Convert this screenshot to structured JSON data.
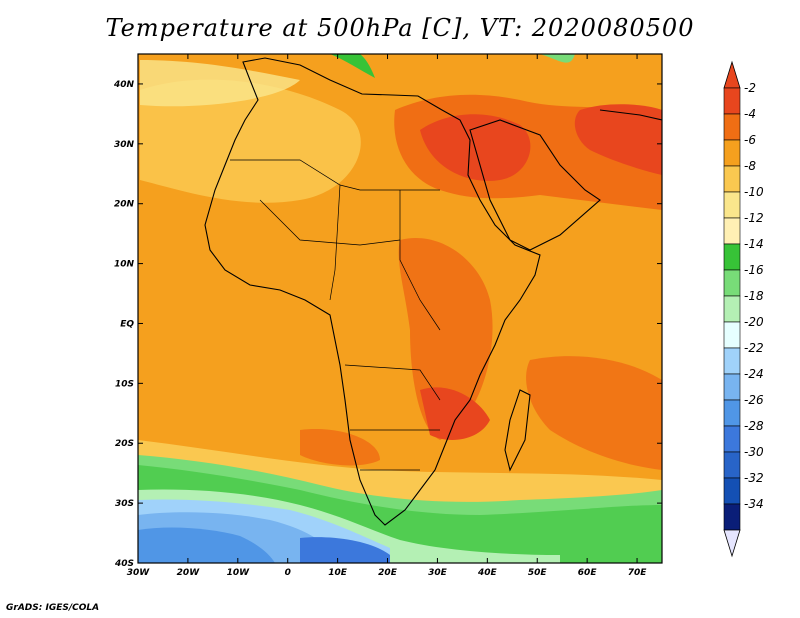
{
  "title": "Temperature at 500hPa [C], VT: 2020080500",
  "footer": "GrADS: IGES/COLA",
  "map": {
    "lon_range": [
      -30,
      75
    ],
    "lat_range": [
      -40,
      45
    ],
    "x_ticks": [
      {
        "lon": -30,
        "label": "30W"
      },
      {
        "lon": -20,
        "label": "20W"
      },
      {
        "lon": -10,
        "label": "10W"
      },
      {
        "lon": 0,
        "label": "0"
      },
      {
        "lon": 10,
        "label": "10E"
      },
      {
        "lon": 20,
        "label": "20E"
      },
      {
        "lon": 30,
        "label": "30E"
      },
      {
        "lon": 40,
        "label": "40E"
      },
      {
        "lon": 50,
        "label": "50E"
      },
      {
        "lon": 60,
        "label": "60E"
      },
      {
        "lon": 70,
        "label": "70E"
      }
    ],
    "y_ticks": [
      {
        "lat": 40,
        "label": "40N"
      },
      {
        "lat": 30,
        "label": "30N"
      },
      {
        "lat": 20,
        "label": "20N"
      },
      {
        "lat": 10,
        "label": "10N"
      },
      {
        "lat": 0,
        "label": "EQ"
      },
      {
        "lat": -10,
        "label": "10S"
      },
      {
        "lat": -20,
        "label": "20S"
      },
      {
        "lat": -30,
        "label": "30S"
      },
      {
        "lat": -40,
        "label": "40S"
      }
    ]
  },
  "colorbar": {
    "labels": [
      "-2",
      "-4",
      "-6",
      "-8",
      "-10",
      "-12",
      "-14",
      "-16",
      "-18",
      "-20",
      "-22",
      "-24",
      "-26",
      "-28",
      "-30",
      "-32",
      "-34"
    ],
    "colors": [
      "#e8461e",
      "#f06e14",
      "#f5a01e",
      "#fac850",
      "#fae68c",
      "#fff0b4",
      "#37c337",
      "#78dc78",
      "#b4f0b4",
      "#e6ffff",
      "#a0d2fa",
      "#78b4f0",
      "#5096e6",
      "#3c78dc",
      "#2864c8",
      "#1450b4",
      "#0a1e78"
    ],
    "top_arrow_color": "#e8461e",
    "bottom_arrow_color": "#e6e6ff"
  },
  "field": {
    "background": "#f5a01e",
    "base_tone": "#f08c1e",
    "desert_tone": "#fac850",
    "hot_tone": "#e8461e",
    "warm_tone": "#f06e14",
    "cool_tone": "#fae68c"
  }
}
